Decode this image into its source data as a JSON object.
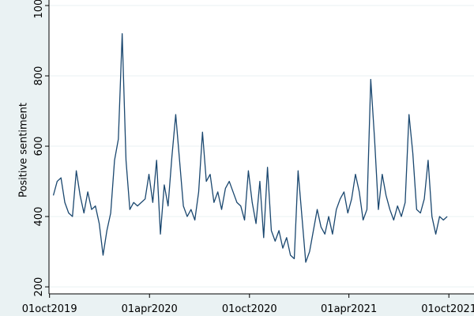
{
  "chart_data": {
    "type": "line",
    "y_label": "Positive sentiment",
    "x": [
      "2019-10-08",
      "2019-10-15",
      "2019-10-22",
      "2019-10-29",
      "2019-11-05",
      "2019-11-12",
      "2019-11-19",
      "2019-11-26",
      "2019-12-03",
      "2019-12-10",
      "2019-12-17",
      "2019-12-24",
      "2019-12-31",
      "2020-01-07",
      "2020-01-14",
      "2020-01-21",
      "2020-01-28",
      "2020-02-04",
      "2020-02-11",
      "2020-02-18",
      "2020-02-25",
      "2020-03-03",
      "2020-03-10",
      "2020-03-17",
      "2020-03-24",
      "2020-03-31",
      "2020-04-07",
      "2020-04-14",
      "2020-04-21",
      "2020-04-28",
      "2020-05-05",
      "2020-05-12",
      "2020-05-19",
      "2020-05-26",
      "2020-06-02",
      "2020-06-09",
      "2020-06-16",
      "2020-06-23",
      "2020-06-30",
      "2020-07-07",
      "2020-07-14",
      "2020-07-21",
      "2020-07-28",
      "2020-08-04",
      "2020-08-11",
      "2020-08-18",
      "2020-08-25",
      "2020-09-01",
      "2020-09-08",
      "2020-09-15",
      "2020-09-22",
      "2020-09-29",
      "2020-10-06",
      "2020-10-13",
      "2020-10-20",
      "2020-10-27",
      "2020-11-03",
      "2020-11-10",
      "2020-11-17",
      "2020-11-24",
      "2020-12-01",
      "2020-12-08",
      "2020-12-15",
      "2020-12-22",
      "2020-12-29",
      "2021-01-05",
      "2021-01-12",
      "2021-01-19",
      "2021-01-26",
      "2021-02-02",
      "2021-02-09",
      "2021-02-16",
      "2021-02-23",
      "2021-03-02",
      "2021-03-09",
      "2021-03-16",
      "2021-03-23",
      "2021-03-30",
      "2021-04-06",
      "2021-04-13",
      "2021-04-20",
      "2021-04-27",
      "2021-05-04",
      "2021-05-11",
      "2021-05-18",
      "2021-05-25",
      "2021-06-01",
      "2021-06-08",
      "2021-06-15",
      "2021-06-22",
      "2021-06-29",
      "2021-07-06",
      "2021-07-13",
      "2021-07-20",
      "2021-07-27",
      "2021-08-03",
      "2021-08-10",
      "2021-08-17",
      "2021-08-24",
      "2021-08-31",
      "2021-09-07",
      "2021-09-14",
      "2021-09-21",
      "2021-09-28"
    ],
    "series": [
      {
        "color": "#1a476f",
        "values": [
          460,
          500,
          510,
          440,
          410,
          400,
          530,
          460,
          410,
          470,
          420,
          430,
          380,
          290,
          360,
          410,
          560,
          620,
          920,
          560,
          420,
          440,
          430,
          440,
          450,
          520,
          440,
          560,
          350,
          490,
          430,
          570,
          690,
          560,
          430,
          400,
          420,
          390,
          470,
          640,
          500,
          520,
          440,
          470,
          420,
          480,
          500,
          470,
          440,
          430,
          390,
          530,
          440,
          380,
          500,
          340,
          540,
          360,
          330,
          360,
          310,
          340,
          290,
          280,
          530,
          400,
          270,
          300,
          360,
          420,
          370,
          350,
          400,
          350,
          420,
          450,
          470,
          410,
          450,
          520,
          470,
          390,
          420,
          790,
          620,
          420,
          520,
          460,
          420,
          390,
          430,
          400,
          440,
          690,
          580,
          420,
          410,
          450,
          560,
          400,
          350,
          400,
          390,
          400
        ]
      }
    ],
    "xlim": [
      "2019-09-30",
      "2021-11-16"
    ],
    "xticks": [
      {
        "value": "2019-10-01",
        "label": "01oct2019"
      },
      {
        "value": "2020-04-01",
        "label": "01apr2020"
      },
      {
        "value": "2020-10-01",
        "label": "01oct2020"
      },
      {
        "value": "2021-04-01",
        "label": "01apr2021"
      },
      {
        "value": "2021-10-01",
        "label": "01oct2021"
      }
    ],
    "ylim": [
      180,
      1000
    ],
    "yticks": [
      200,
      400,
      600,
      800,
      1000
    ],
    "grid": true
  }
}
